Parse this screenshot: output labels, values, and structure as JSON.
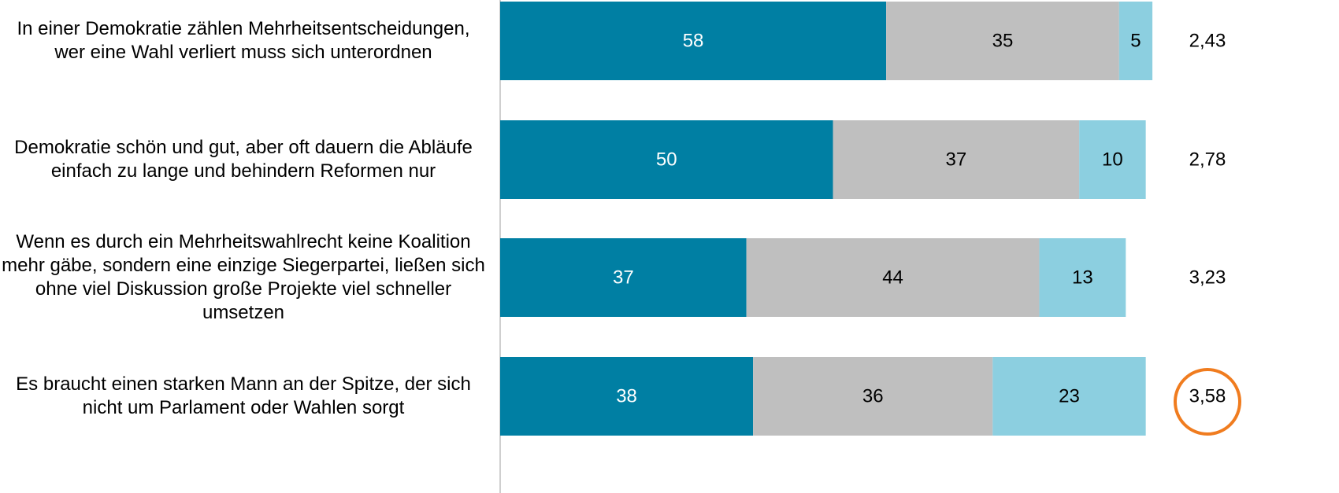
{
  "chart_data": {
    "type": "stacked_bar_horizontal",
    "categories": [
      "In einer Demokratie zählen Mehrheitsentscheidungen, wer eine Wahl verliert muss sich unterordnen",
      "Demokratie schön und gut, aber oft dauern die Abläufe einfach zu lange und behindern Reformen nur",
      "Wenn es durch ein Mehrheitswahlrecht keine Koalition mehr gäbe, sondern eine einzige Siegerpartei, ließen sich ohne viel Diskussion große Projekte viel schneller umsetzen",
      "Es braucht einen starken Mann an der Spitze, der sich nicht um Parlament oder Wahlen sorgt"
    ],
    "series": [
      {
        "color": "#007fa3",
        "label_color": "#ffffff",
        "values": [
          58,
          50,
          37,
          38
        ]
      },
      {
        "color": "#bfbfbf",
        "label_color": "#000000",
        "values": [
          35,
          37,
          44,
          36
        ]
      },
      {
        "color": "#8ccfe0",
        "label_color": "#000000",
        "values": [
          5,
          10,
          13,
          23
        ]
      }
    ],
    "means": {
      "values": [
        2.43,
        2.78,
        3.23,
        3.58
      ],
      "value_labels": [
        "2,43",
        "2,78",
        "3,23",
        "3,58"
      ]
    },
    "xlim": [
      0,
      100
    ]
  }
}
